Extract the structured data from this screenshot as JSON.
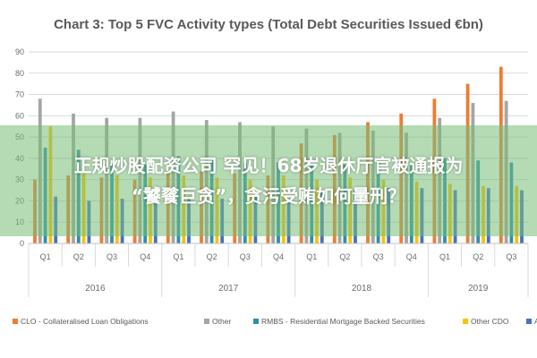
{
  "chart_data": {
    "type": "bar",
    "title": "Chart 3: Top 5 FVC Activity types (Total Debt Securities Issued €bn)",
    "ylim": [
      0,
      90
    ],
    "yticks": [
      0,
      10,
      20,
      30,
      40,
      50,
      60,
      70,
      80,
      90
    ],
    "categories": [
      "Q1",
      "Q2",
      "Q3",
      "Q4",
      "Q1",
      "Q2",
      "Q3",
      "Q4",
      "Q1",
      "Q2",
      "Q3",
      "Q4",
      "Q1",
      "Q2",
      "Q3"
    ],
    "year_groups": [
      {
        "label": "2016",
        "count": 4
      },
      {
        "label": "2017",
        "count": 4
      },
      {
        "label": "2018",
        "count": 4
      },
      {
        "label": "2019",
        "count": 3
      }
    ],
    "series": [
      {
        "name": "CLO - Collateralised Loan Obligations",
        "color": "#ED7D31",
        "values": [
          30,
          32,
          31,
          30,
          34,
          34,
          33,
          32,
          47,
          51,
          57,
          61,
          68,
          75,
          83
        ]
      },
      {
        "name": "Other",
        "color": "#A5A5A5",
        "values": [
          68,
          61,
          59,
          59,
          62,
          58,
          57,
          55,
          54,
          52,
          53,
          52,
          59,
          66,
          67
        ]
      },
      {
        "name": "RMBS - Residential Mortgage Backed Securities",
        "color": "#2E8FA8",
        "values": [
          45,
          44,
          38,
          37,
          41,
          39,
          38,
          38,
          37,
          37,
          38,
          37,
          40,
          39,
          38
        ]
      },
      {
        "name": "Other CDO",
        "color": "#FFC000",
        "values": [
          55,
          33,
          32,
          31,
          32,
          31,
          30,
          32,
          30,
          31,
          30,
          29,
          28,
          27,
          27
        ]
      },
      {
        "name": "ABCP",
        "color": "#4472C4",
        "values": [
          22,
          20,
          21,
          20,
          22,
          21,
          22,
          21,
          24,
          25,
          26,
          26,
          25,
          26,
          25
        ]
      }
    ],
    "legend_position": "bottom",
    "grid": true
  },
  "overlay": {
    "line1": "正规炒股配资公司 罕见！68岁退休厅官被通报为",
    "line2": "“饕餮巨贪”，贪污受贿如何量刑？"
  }
}
